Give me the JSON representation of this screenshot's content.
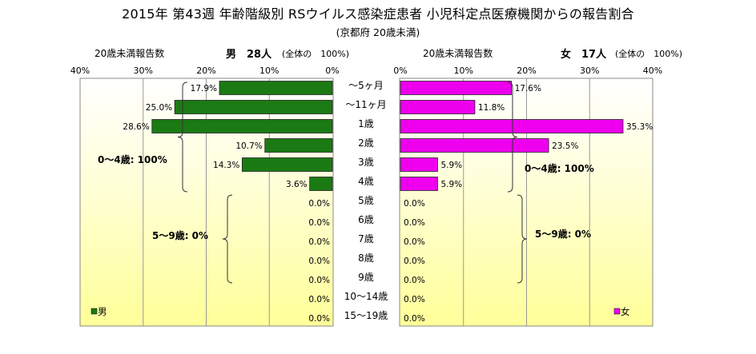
{
  "chart_data": {
    "type": "bar",
    "title": "2015年 第43週 年齢階級別 RSウイルス感染症患者 小児科定点医療機関からの報告割合",
    "subtitle": "(京都府 20歳未満)",
    "categories": [
      "～5ヶ月",
      "～11ヶ月",
      "1歳",
      "2歳",
      "3歳",
      "4歳",
      "5歳",
      "6歳",
      "7歳",
      "8歳",
      "9歳",
      "10～14歳",
      "15～19歳"
    ],
    "xlim": [
      0,
      40
    ],
    "ticks": [
      "40%",
      "30%",
      "20%",
      "10%",
      "0%",
      "0%",
      "10%",
      "20%",
      "30%",
      "40%"
    ],
    "grid": true,
    "series": [
      {
        "name": "男",
        "header_left": "20歳未満報告数",
        "header_count": "男　28人",
        "header_note": "(全体の　100%)",
        "color": "#1b7a14",
        "values": [
          17.9,
          25.0,
          28.6,
          10.7,
          14.3,
          3.6,
          0,
          0,
          0,
          0,
          0,
          0,
          0
        ],
        "labels": [
          "17.9%",
          "25.0%",
          "28.6%",
          "10.7%",
          "14.3%",
          "3.6%",
          "0.0%",
          "0.0%",
          "0.0%",
          "0.0%",
          "0.0%",
          "0.0%",
          "0.0%"
        ],
        "group_a": "0～4歳: 100%",
        "group_b": "5～9歳: 0%"
      },
      {
        "name": "女",
        "header_left": "20歳未満報告数",
        "header_count": "女　17人",
        "header_note": "(全体の　100%)",
        "color": "#ee00ee",
        "values": [
          17.6,
          11.8,
          35.3,
          23.5,
          5.9,
          5.9,
          0,
          0,
          0,
          0,
          0,
          0,
          0
        ],
        "labels": [
          "17.6%",
          "11.8%",
          "35.3%",
          "23.5%",
          "5.9%",
          "5.9%",
          "0.0%",
          "0.0%",
          "0.0%",
          "0.0%",
          "0.0%",
          "0.0%",
          "0.0%"
        ],
        "group_a": "0～4歳: 100%",
        "group_b": "5～9歳: 0%"
      }
    ]
  }
}
